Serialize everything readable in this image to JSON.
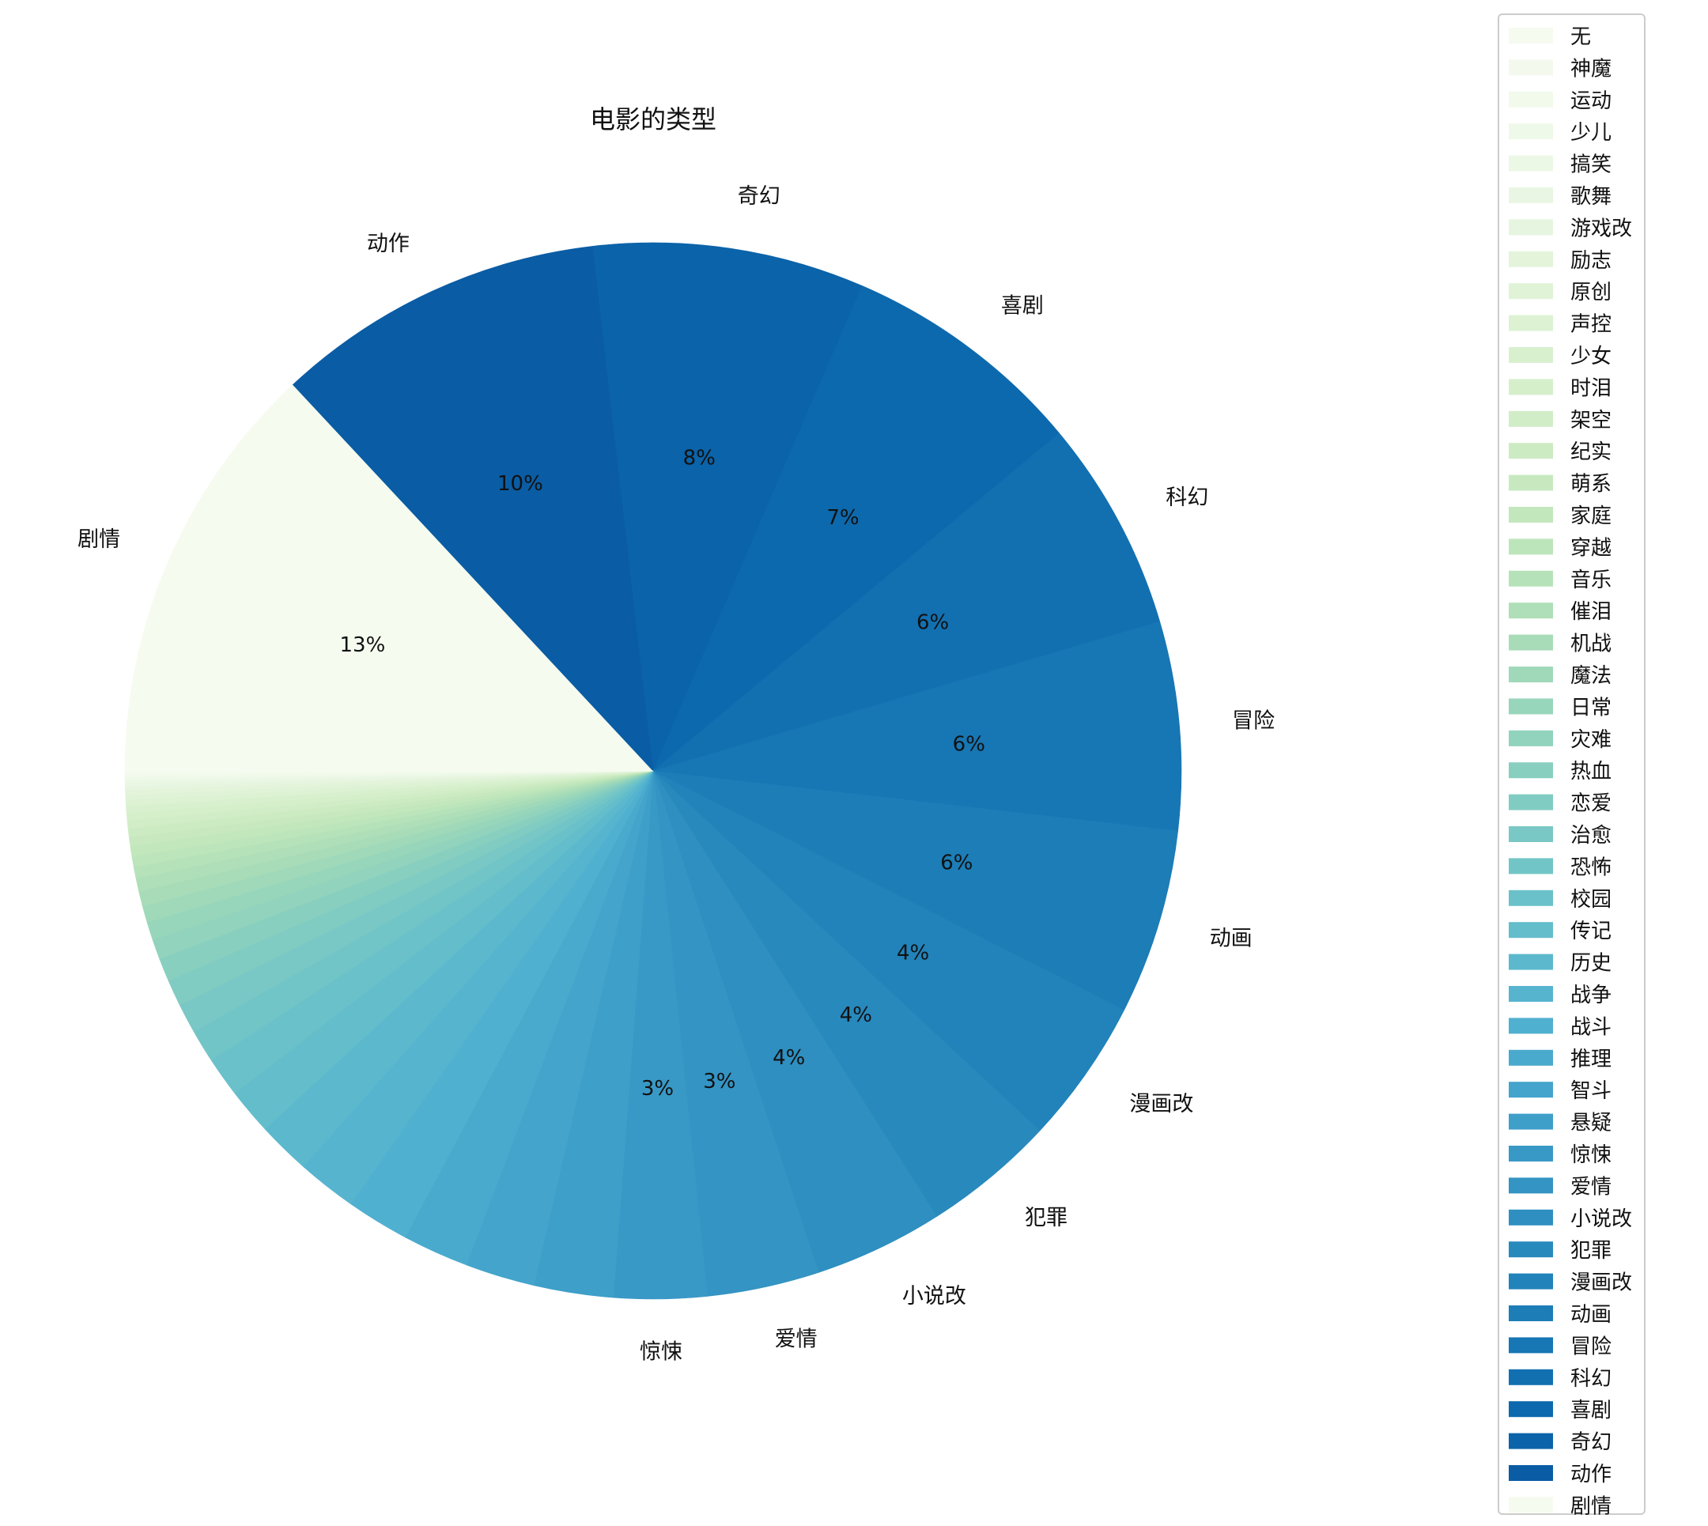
{
  "chart_data": {
    "type": "pie",
    "title": "电影的类型",
    "colormap": "GnBu",
    "start_angle_deg": 180,
    "direction": "clockwise",
    "legend_position": "right",
    "slices": [
      {
        "name": "剧情",
        "value": 12.9,
        "pct_label": "13%",
        "show_label": true,
        "color": "#f5fbef"
      },
      {
        "name": "动作",
        "value": 10.0,
        "pct_label": "10%",
        "show_label": true,
        "color": "#0a5ca4"
      },
      {
        "name": "奇幻",
        "value": 8.2,
        "pct_label": "8%",
        "show_label": true,
        "color": "#0b63a9"
      },
      {
        "name": "喜剧",
        "value": 7.4,
        "pct_label": "7%",
        "show_label": true,
        "color": "#0d69ad"
      },
      {
        "name": "科幻",
        "value": 6.4,
        "pct_label": "6%",
        "show_label": true,
        "color": "#1270b1"
      },
      {
        "name": "冒险",
        "value": 6.3,
        "pct_label": "6%",
        "show_label": true,
        "color": "#1776b4"
      },
      {
        "name": "动画",
        "value": 5.6,
        "pct_label": "6%",
        "show_label": true,
        "color": "#1c7db7"
      },
      {
        "name": "漫画改",
        "value": 4.4,
        "pct_label": "4%",
        "show_label": true,
        "color": "#2183ba"
      },
      {
        "name": "犯罪",
        "value": 4.0,
        "pct_label": "4%",
        "show_label": true,
        "color": "#2889bd"
      },
      {
        "name": "小说改",
        "value": 3.9,
        "pct_label": "4%",
        "show_label": true,
        "color": "#2e8fc0"
      },
      {
        "name": "爱情",
        "value": 3.4,
        "pct_label": "3%",
        "show_label": true,
        "color": "#3494c3"
      },
      {
        "name": "惊悚",
        "value": 2.8,
        "pct_label": "3%",
        "show_label": true,
        "color": "#3999c6"
      },
      {
        "name": "悬疑",
        "value": 2.4,
        "pct_label": "",
        "show_label": false,
        "color": "#3e9fc9"
      },
      {
        "name": "智斗",
        "value": 2.1,
        "pct_label": "",
        "show_label": false,
        "color": "#44a4cb"
      },
      {
        "name": "推理",
        "value": 2.0,
        "pct_label": "",
        "show_label": false,
        "color": "#4aaacd"
      },
      {
        "name": "战斗",
        "value": 1.9,
        "pct_label": "",
        "show_label": false,
        "color": "#50b0cf"
      },
      {
        "name": "战争",
        "value": 1.8,
        "pct_label": "",
        "show_label": false,
        "color": "#56b4cf"
      },
      {
        "name": "历史",
        "value": 1.6,
        "pct_label": "",
        "show_label": false,
        "color": "#5cb9cd"
      },
      {
        "name": "传记",
        "value": 1.4,
        "pct_label": "",
        "show_label": false,
        "color": "#63bdcb"
      },
      {
        "name": "校园",
        "value": 1.2,
        "pct_label": "",
        "show_label": false,
        "color": "#6ac1c9"
      },
      {
        "name": "恐怖",
        "value": 1.0,
        "pct_label": "",
        "show_label": false,
        "color": "#72c5c7"
      },
      {
        "name": "治愈",
        "value": 0.9,
        "pct_label": "",
        "show_label": false,
        "color": "#79c8c5"
      },
      {
        "name": "恋爱",
        "value": 0.8,
        "pct_label": "",
        "show_label": false,
        "color": "#81ccc2"
      },
      {
        "name": "热血",
        "value": 0.7,
        "pct_label": "",
        "show_label": false,
        "color": "#89cfbf"
      },
      {
        "name": "灾难",
        "value": 0.6,
        "pct_label": "",
        "show_label": false,
        "color": "#91d3bc"
      },
      {
        "name": "日常",
        "value": 0.55,
        "pct_label": "",
        "show_label": false,
        "color": "#98d6bb"
      },
      {
        "name": "魔法",
        "value": 0.5,
        "pct_label": "",
        "show_label": false,
        "color": "#a0d9ba"
      },
      {
        "name": "机战",
        "value": 0.45,
        "pct_label": "",
        "show_label": false,
        "color": "#a8dcb8"
      },
      {
        "name": "催泪",
        "value": 0.4,
        "pct_label": "",
        "show_label": false,
        "color": "#afdfb8"
      },
      {
        "name": "音乐",
        "value": 0.35,
        "pct_label": "",
        "show_label": false,
        "color": "#b6e2b9"
      },
      {
        "name": "穿越",
        "value": 0.32,
        "pct_label": "",
        "show_label": false,
        "color": "#bde5bb"
      },
      {
        "name": "家庭",
        "value": 0.3,
        "pct_label": "",
        "show_label": false,
        "color": "#c3e7bd"
      },
      {
        "name": "萌系",
        "value": 0.28,
        "pct_label": "",
        "show_label": false,
        "color": "#c8e9c0"
      },
      {
        "name": "纪实",
        "value": 0.26,
        "pct_label": "",
        "show_label": false,
        "color": "#cdebc3"
      },
      {
        "name": "架空",
        "value": 0.24,
        "pct_label": "",
        "show_label": false,
        "color": "#d1edc7"
      },
      {
        "name": "时泪",
        "value": 0.22,
        "pct_label": "",
        "show_label": false,
        "color": "#d5efcb"
      },
      {
        "name": "少女",
        "value": 0.2,
        "pct_label": "",
        "show_label": false,
        "color": "#d9f0cf"
      },
      {
        "name": "声控",
        "value": 0.18,
        "pct_label": "",
        "show_label": false,
        "color": "#dcf2d3"
      },
      {
        "name": "原创",
        "value": 0.16,
        "pct_label": "",
        "show_label": false,
        "color": "#e0f3d7"
      },
      {
        "name": "励志",
        "value": 0.14,
        "pct_label": "",
        "show_label": false,
        "color": "#e3f4db"
      },
      {
        "name": "游戏改",
        "value": 0.12,
        "pct_label": "",
        "show_label": false,
        "color": "#e6f5df"
      },
      {
        "name": "歌舞",
        "value": 0.1,
        "pct_label": "",
        "show_label": false,
        "color": "#e9f6e3"
      },
      {
        "name": "搞笑",
        "value": 0.09,
        "pct_label": "",
        "show_label": false,
        "color": "#ecf8e6"
      },
      {
        "name": "少儿",
        "value": 0.08,
        "pct_label": "",
        "show_label": false,
        "color": "#eff9e9"
      },
      {
        "name": "运动",
        "value": 0.07,
        "pct_label": "",
        "show_label": false,
        "color": "#f1faeb"
      },
      {
        "name": "神魔",
        "value": 0.06,
        "pct_label": "",
        "show_label": false,
        "color": "#f3faed"
      },
      {
        "name": "无",
        "value": 0.05,
        "pct_label": "",
        "show_label": false,
        "color": "#f5fbef"
      }
    ],
    "legend_entries": [
      {
        "name": "无",
        "color": "#f5fbef"
      },
      {
        "name": "神魔",
        "color": "#f3faed"
      },
      {
        "name": "运动",
        "color": "#f1faeb"
      },
      {
        "name": "少儿",
        "color": "#eff9e9"
      },
      {
        "name": "搞笑",
        "color": "#ecf8e6"
      },
      {
        "name": "歌舞",
        "color": "#e9f6e3"
      },
      {
        "name": "游戏改",
        "color": "#e6f5df"
      },
      {
        "name": "励志",
        "color": "#e3f4db"
      },
      {
        "name": "原创",
        "color": "#e0f3d7"
      },
      {
        "name": "声控",
        "color": "#dcf2d3"
      },
      {
        "name": "少女",
        "color": "#d9f0cf"
      },
      {
        "name": "时泪",
        "color": "#d5efcb"
      },
      {
        "name": "架空",
        "color": "#d1edc7"
      },
      {
        "name": "纪实",
        "color": "#cdebc3"
      },
      {
        "name": "萌系",
        "color": "#c8e9c0"
      },
      {
        "name": "家庭",
        "color": "#c3e7bd"
      },
      {
        "name": "穿越",
        "color": "#bde5bb"
      },
      {
        "name": "音乐",
        "color": "#b6e2b9"
      },
      {
        "name": "催泪",
        "color": "#afdfb8"
      },
      {
        "name": "机战",
        "color": "#a8dcb8"
      },
      {
        "name": "魔法",
        "color": "#a0d9ba"
      },
      {
        "name": "日常",
        "color": "#98d6bb"
      },
      {
        "name": "灾难",
        "color": "#91d3bc"
      },
      {
        "name": "热血",
        "color": "#89cfbf"
      },
      {
        "name": "恋爱",
        "color": "#81ccc2"
      },
      {
        "name": "治愈",
        "color": "#79c8c5"
      },
      {
        "name": "恐怖",
        "color": "#72c5c7"
      },
      {
        "name": "校园",
        "color": "#6ac1c9"
      },
      {
        "name": "传记",
        "color": "#63bdcb"
      },
      {
        "name": "历史",
        "color": "#5cb9cd"
      },
      {
        "name": "战争",
        "color": "#56b4cf"
      },
      {
        "name": "战斗",
        "color": "#50b0cf"
      },
      {
        "name": "推理",
        "color": "#4aaacd"
      },
      {
        "name": "智斗",
        "color": "#44a4cb"
      },
      {
        "name": "悬疑",
        "color": "#3e9fc9"
      },
      {
        "name": "惊悚",
        "color": "#3999c6"
      },
      {
        "name": "爱情",
        "color": "#3494c3"
      },
      {
        "name": "小说改",
        "color": "#2e8fc0"
      },
      {
        "name": "犯罪",
        "color": "#2889bd"
      },
      {
        "name": "漫画改",
        "color": "#2183ba"
      },
      {
        "name": "动画",
        "color": "#1c7db7"
      },
      {
        "name": "冒险",
        "color": "#1776b4"
      },
      {
        "name": "科幻",
        "color": "#1270b1"
      },
      {
        "name": "喜剧",
        "color": "#0d69ad"
      },
      {
        "name": "奇幻",
        "color": "#0b63a9"
      },
      {
        "name": "动作",
        "color": "#0a5ca4"
      },
      {
        "name": "剧情",
        "color": "#f5fbef"
      }
    ]
  }
}
